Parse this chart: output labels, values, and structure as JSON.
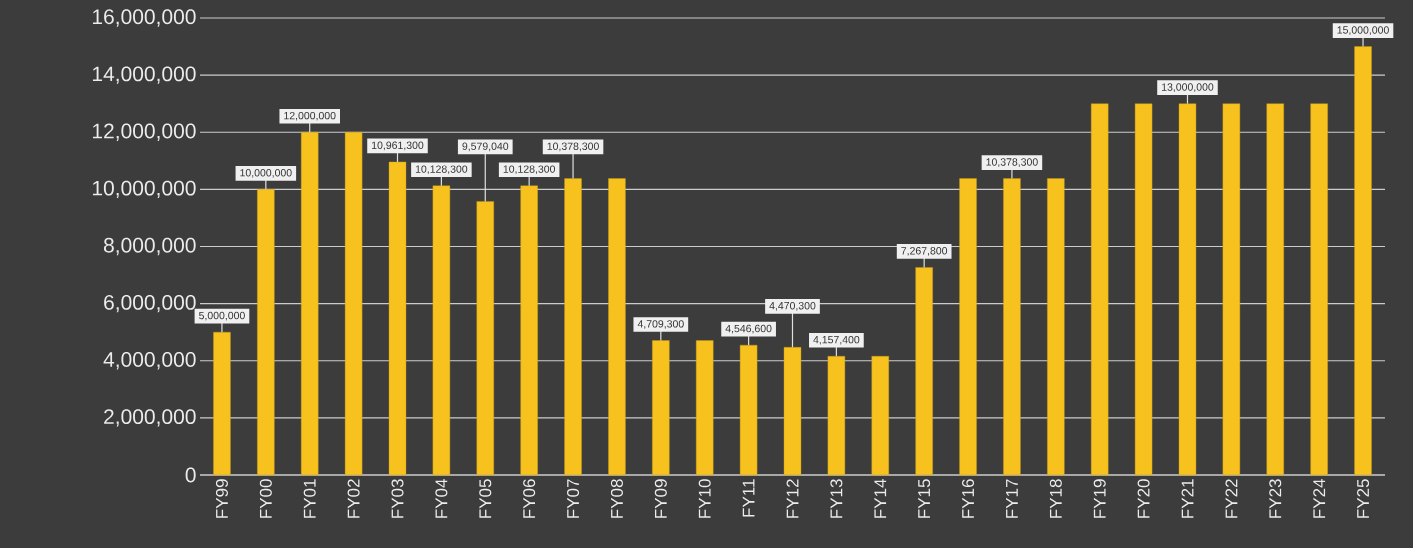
{
  "chart_data": {
    "type": "bar",
    "categories": [
      "FY99",
      "FY00",
      "FY01",
      "FY02",
      "FY03",
      "FY04",
      "FY05",
      "FY06",
      "FY07",
      "FY08",
      "FY09",
      "FY10",
      "FY11",
      "FY12",
      "FY13",
      "FY14",
      "FY15",
      "FY16",
      "FY17",
      "FY18",
      "FY19",
      "FY20",
      "FY21",
      "FY22",
      "FY23",
      "FY24",
      "FY25"
    ],
    "values": [
      5000000,
      10000000,
      12000000,
      12000000,
      10961300,
      10128300,
      9579040,
      10128300,
      10378300,
      10378300,
      4709300,
      4709300,
      4546600,
      4470300,
      4157400,
      4157400,
      7267800,
      10378300,
      10378300,
      10378300,
      13000000,
      13000000,
      13000000,
      13000000,
      13000000,
      13000000,
      15000000
    ],
    "value_labels": [
      "5,000,000",
      "10,000,000",
      "12,000,000",
      null,
      "10,961,300",
      "10,128,300",
      "9,579,040",
      "10,128,300",
      "10,378,300",
      null,
      "4,709,300",
      null,
      "4,546,600",
      "4,470,300",
      "4,157,400",
      null,
      "7,267,800",
      null,
      "10,378,300",
      null,
      null,
      null,
      "13,000,000",
      null,
      null,
      null,
      "15,000,000"
    ],
    "color": "#f7c21e",
    "ylim": [
      0,
      16000000
    ],
    "yticks": [
      {
        "value": 0,
        "label": "0"
      },
      {
        "value": 2000000,
        "label": "2,000,000"
      },
      {
        "value": 4000000,
        "label": "4,000,000"
      },
      {
        "value": 6000000,
        "label": "6,000,000"
      },
      {
        "value": 8000000,
        "label": "8,000,000"
      },
      {
        "value": 10000000,
        "label": "10,000,000"
      },
      {
        "value": 12000000,
        "label": "12,000,000"
      },
      {
        "value": 14000000,
        "label": "14,000,000"
      },
      {
        "value": 16000000,
        "label": "16,000,000"
      }
    ],
    "grid": "y"
  }
}
